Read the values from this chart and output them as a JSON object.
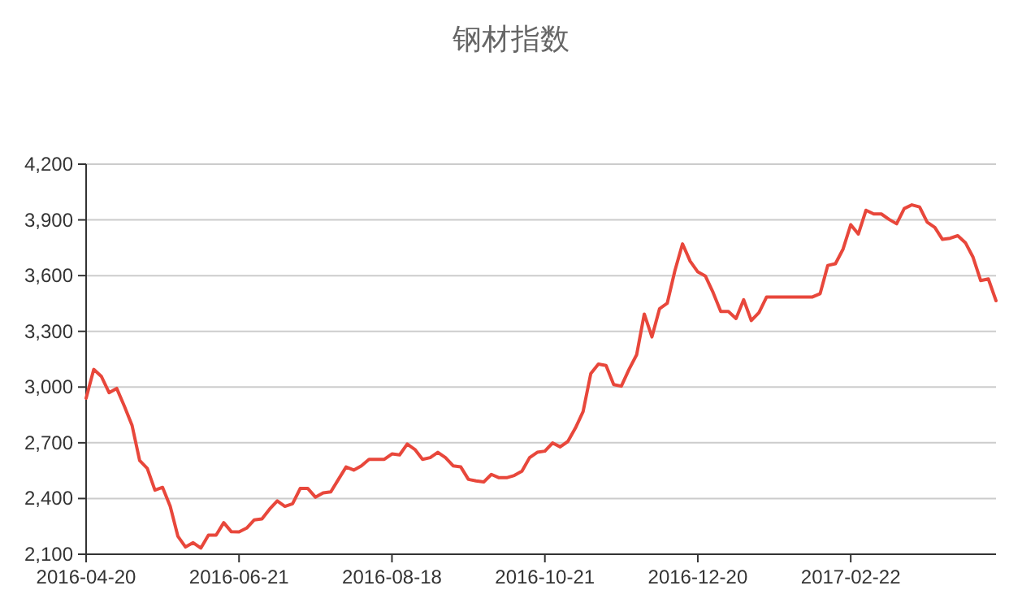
{
  "chart_data": {
    "type": "line",
    "title": "钢材指数",
    "categories": [
      "2016-04-20",
      null,
      null,
      null,
      null,
      null,
      null,
      null,
      null,
      null,
      null,
      null,
      null,
      null,
      null,
      null,
      null,
      null,
      null,
      null,
      "2016-06-21",
      null,
      null,
      null,
      null,
      null,
      null,
      null,
      null,
      null,
      null,
      null,
      null,
      null,
      null,
      null,
      null,
      null,
      null,
      null,
      "2016-08-18",
      null,
      null,
      null,
      null,
      null,
      null,
      null,
      null,
      null,
      null,
      null,
      null,
      null,
      null,
      null,
      null,
      null,
      null,
      null,
      "2016-10-21",
      null,
      null,
      null,
      null,
      null,
      null,
      null,
      null,
      null,
      null,
      null,
      null,
      null,
      null,
      null,
      null,
      null,
      null,
      null,
      "2016-12-20",
      null,
      null,
      null,
      null,
      null,
      null,
      null,
      null,
      null,
      null,
      null,
      null,
      null,
      null,
      null,
      null,
      null,
      null,
      null,
      "2017-02-22",
      null,
      null,
      null,
      null,
      null,
      null,
      null,
      null,
      null,
      null,
      null,
      null,
      null,
      null,
      null,
      null,
      null,
      null,
      null
    ],
    "series": [
      {
        "color": "#e8473b",
        "values": [
          2940,
          3095,
          3057,
          2970,
          2993,
          2897,
          2795,
          2605,
          2562,
          2445,
          2460,
          2358,
          2197,
          2139,
          2162,
          2133,
          2203,
          2203,
          2270,
          2221,
          2220,
          2241,
          2285,
          2290,
          2343,
          2387,
          2358,
          2372,
          2454,
          2454,
          2407,
          2430,
          2436,
          2503,
          2570,
          2553,
          2576,
          2611,
          2611,
          2611,
          2640,
          2635,
          2693,
          2664,
          2611,
          2620,
          2649,
          2620,
          2576,
          2570,
          2503,
          2495,
          2489,
          2530,
          2512,
          2512,
          2524,
          2547,
          2620,
          2649,
          2655,
          2699,
          2678,
          2707,
          2780,
          2868,
          3072,
          3124,
          3116,
          3013,
          3005,
          3095,
          3174,
          3393,
          3270,
          3422,
          3451,
          3626,
          3771,
          3678,
          3620,
          3597,
          3509,
          3407,
          3407,
          3369,
          3470,
          3358,
          3401,
          3485,
          3485,
          3485,
          3485,
          3485,
          3485,
          3485,
          3503,
          3655,
          3664,
          3743,
          3874,
          3824,
          3952,
          3932,
          3932,
          3903,
          3879,
          3961,
          3981,
          3970,
          3888,
          3859,
          3795,
          3801,
          3815,
          3777,
          3699,
          3573,
          3582,
          3465
        ]
      }
    ],
    "ylim": [
      2100,
      4200
    ],
    "yticks": [
      {
        "value": 2100,
        "label": "2,100"
      },
      {
        "value": 2400,
        "label": "2,400"
      },
      {
        "value": 2700,
        "label": "2,700"
      },
      {
        "value": 3000,
        "label": "3,000"
      },
      {
        "value": 3300,
        "label": "3,300"
      },
      {
        "value": 3600,
        "label": "3,600"
      },
      {
        "value": 3900,
        "label": "3,900"
      },
      {
        "value": 4200,
        "label": "4,200"
      }
    ],
    "grid": "y"
  }
}
